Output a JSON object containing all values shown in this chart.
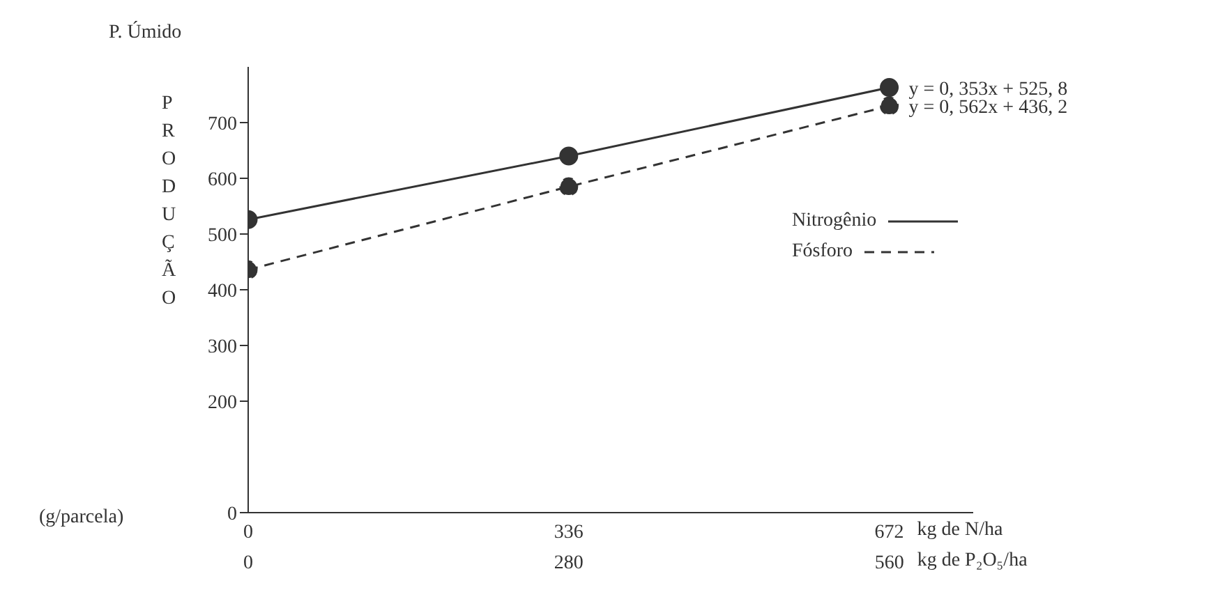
{
  "chart_data": {
    "type": "line",
    "ylabel": "PRODUÇÃO",
    "xlabel": "kg de N/ha",
    "x2label": "kg de P₂O₅/ha",
    "xlim": [
      0,
      760
    ],
    "xticks": [
      0,
      336,
      672
    ],
    "x2lim": [
      0,
      633.3
    ],
    "x2ticks": [
      0,
      280,
      560
    ],
    "ylim": [
      0,
      800
    ],
    "yticks": [
      0,
      200,
      300,
      400,
      500,
      600,
      700
    ],
    "series": [
      {
        "name": "Nitrogênio",
        "color": "#333333",
        "x": [
          0,
          336,
          672
        ],
        "values": [
          526,
          640,
          763
        ],
        "line_style": "solid"
      },
      {
        "name": "Fósforo",
        "color": "#333333",
        "axis": "x2",
        "x": [
          0,
          280,
          560
        ],
        "values": [
          436,
          585,
          730
        ],
        "line_style": "dashed"
      }
    ],
    "marker": "circle",
    "legend": "right",
    "annotations": [
      "P. Úmido",
      "(g/parcela)",
      {
        "text": "y = 0, 353x + 525, 8",
        "x": 672,
        "y": 763
      },
      {
        "text": "y = 0, 562x + 436, 2",
        "x": 672,
        "y": 730
      }
    ]
  }
}
